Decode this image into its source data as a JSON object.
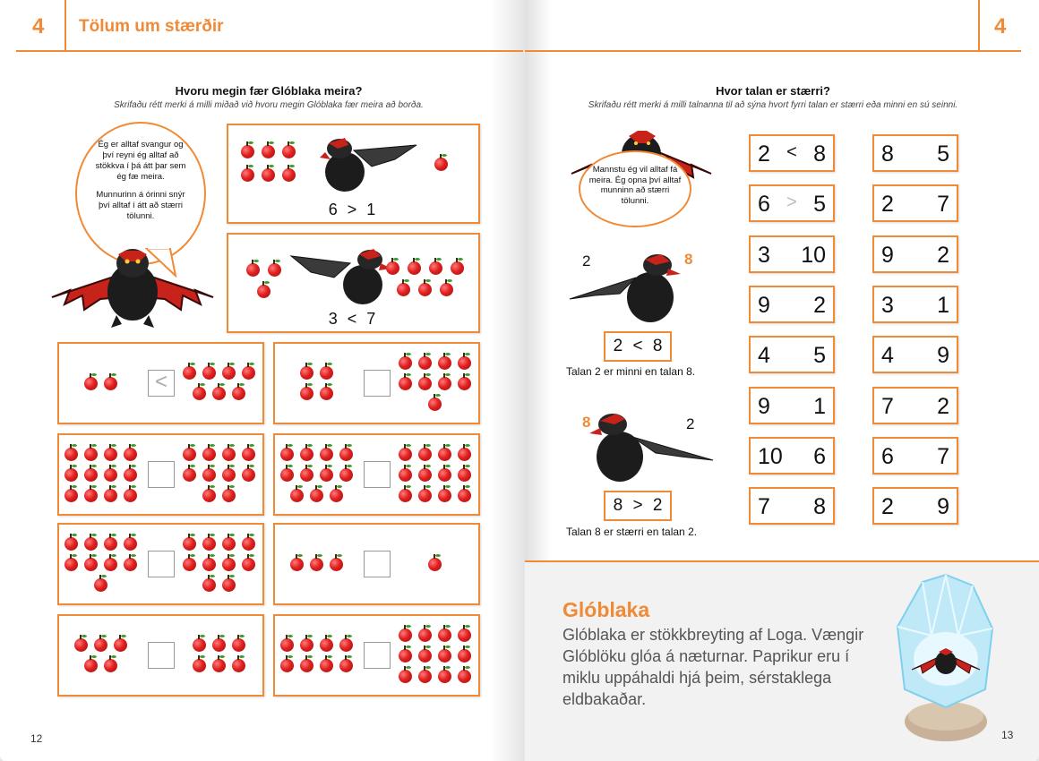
{
  "left_page": {
    "chapter_number": "4",
    "chapter_title": "Tölum um stærðir",
    "page_number": "12",
    "task_title": "Hvoru megin fær Glóblaka meira?",
    "task_subtitle": "Skrifaðu rétt merki á milli miðað við hvoru megin Glóblaka fær meira að borða.",
    "speech": {
      "line1": "Ég er alltaf svangur og því reyni ég alltaf að stökkva í þá átt þar sem ég fæ meira.",
      "line2": "Munnurinn á órinni snýr því alltaf í átt að stærri tölunni."
    },
    "examples": [
      {
        "left": "6",
        "sign": ">",
        "right": "1"
      },
      {
        "left": "3",
        "sign": "<",
        "right": "7"
      }
    ],
    "exercises": [
      {
        "left": 2,
        "right": 7,
        "answer": "<"
      },
      {
        "left": 4,
        "right": 9,
        "answer": ""
      },
      {
        "left": 12,
        "right": 10,
        "answer": ""
      },
      {
        "left": 11,
        "right": 12,
        "answer": ""
      },
      {
        "left": 9,
        "right": 10,
        "answer": ""
      },
      {
        "left": 3,
        "right": 1,
        "answer": ""
      },
      {
        "left": 5,
        "right": 6,
        "answer": ""
      },
      {
        "left": 8,
        "right": 12,
        "answer": ""
      }
    ]
  },
  "right_page": {
    "chapter_number": "4",
    "page_number": "13",
    "task_title": "Hvor talan er stærri?",
    "task_subtitle": "Skrifaðu rétt merki á milli talnanna til að sýna hvort fyrri talan er stærri eða minni en sú seinni.",
    "speech": "Mannstu ég vil alltaf fá meira. Ég opna því alltaf munninn að stærri tölunni.",
    "example1": {
      "left_label": "2",
      "right_label": "8",
      "box": "2 < 8",
      "caption": "Talan 2 er minni en talan 8."
    },
    "example2": {
      "left_label": "8",
      "right_label": "2",
      "box": "8 > 2",
      "caption": "Talan 8 er stærri en talan 2."
    },
    "col1": [
      {
        "a": "2",
        "sign": "<",
        "b": "8"
      },
      {
        "a": "6",
        "sign": ">",
        "b": "5"
      },
      {
        "a": "3",
        "sign": "",
        "b": "10"
      },
      {
        "a": "9",
        "sign": "",
        "b": "2"
      },
      {
        "a": "4",
        "sign": "",
        "b": "5"
      },
      {
        "a": "9",
        "sign": "",
        "b": "1"
      },
      {
        "a": "10",
        "sign": "",
        "b": "6"
      },
      {
        "a": "7",
        "sign": "",
        "b": "8"
      }
    ],
    "col2": [
      {
        "a": "8",
        "sign": "",
        "b": "5"
      },
      {
        "a": "2",
        "sign": "",
        "b": "7"
      },
      {
        "a": "9",
        "sign": "",
        "b": "2"
      },
      {
        "a": "3",
        "sign": "",
        "b": "1"
      },
      {
        "a": "4",
        "sign": "",
        "b": "9"
      },
      {
        "a": "7",
        "sign": "",
        "b": "2"
      },
      {
        "a": "6",
        "sign": "",
        "b": "7"
      },
      {
        "a": "2",
        "sign": "",
        "b": "9"
      }
    ],
    "info": {
      "title": "Glóblaka",
      "text": "Glóblaka er stökkbreyting af Loga. Vængir Glóblöku glóa á næturnar. Paprikur eru í miklu uppáhaldi hjá þeim, sérstaklega eldbakaðar."
    }
  },
  "colors": {
    "accent": "#f08a36",
    "apple": "#e0211f",
    "dragon_red": "#c8231b",
    "dragon_body": "#1c1c1c"
  }
}
